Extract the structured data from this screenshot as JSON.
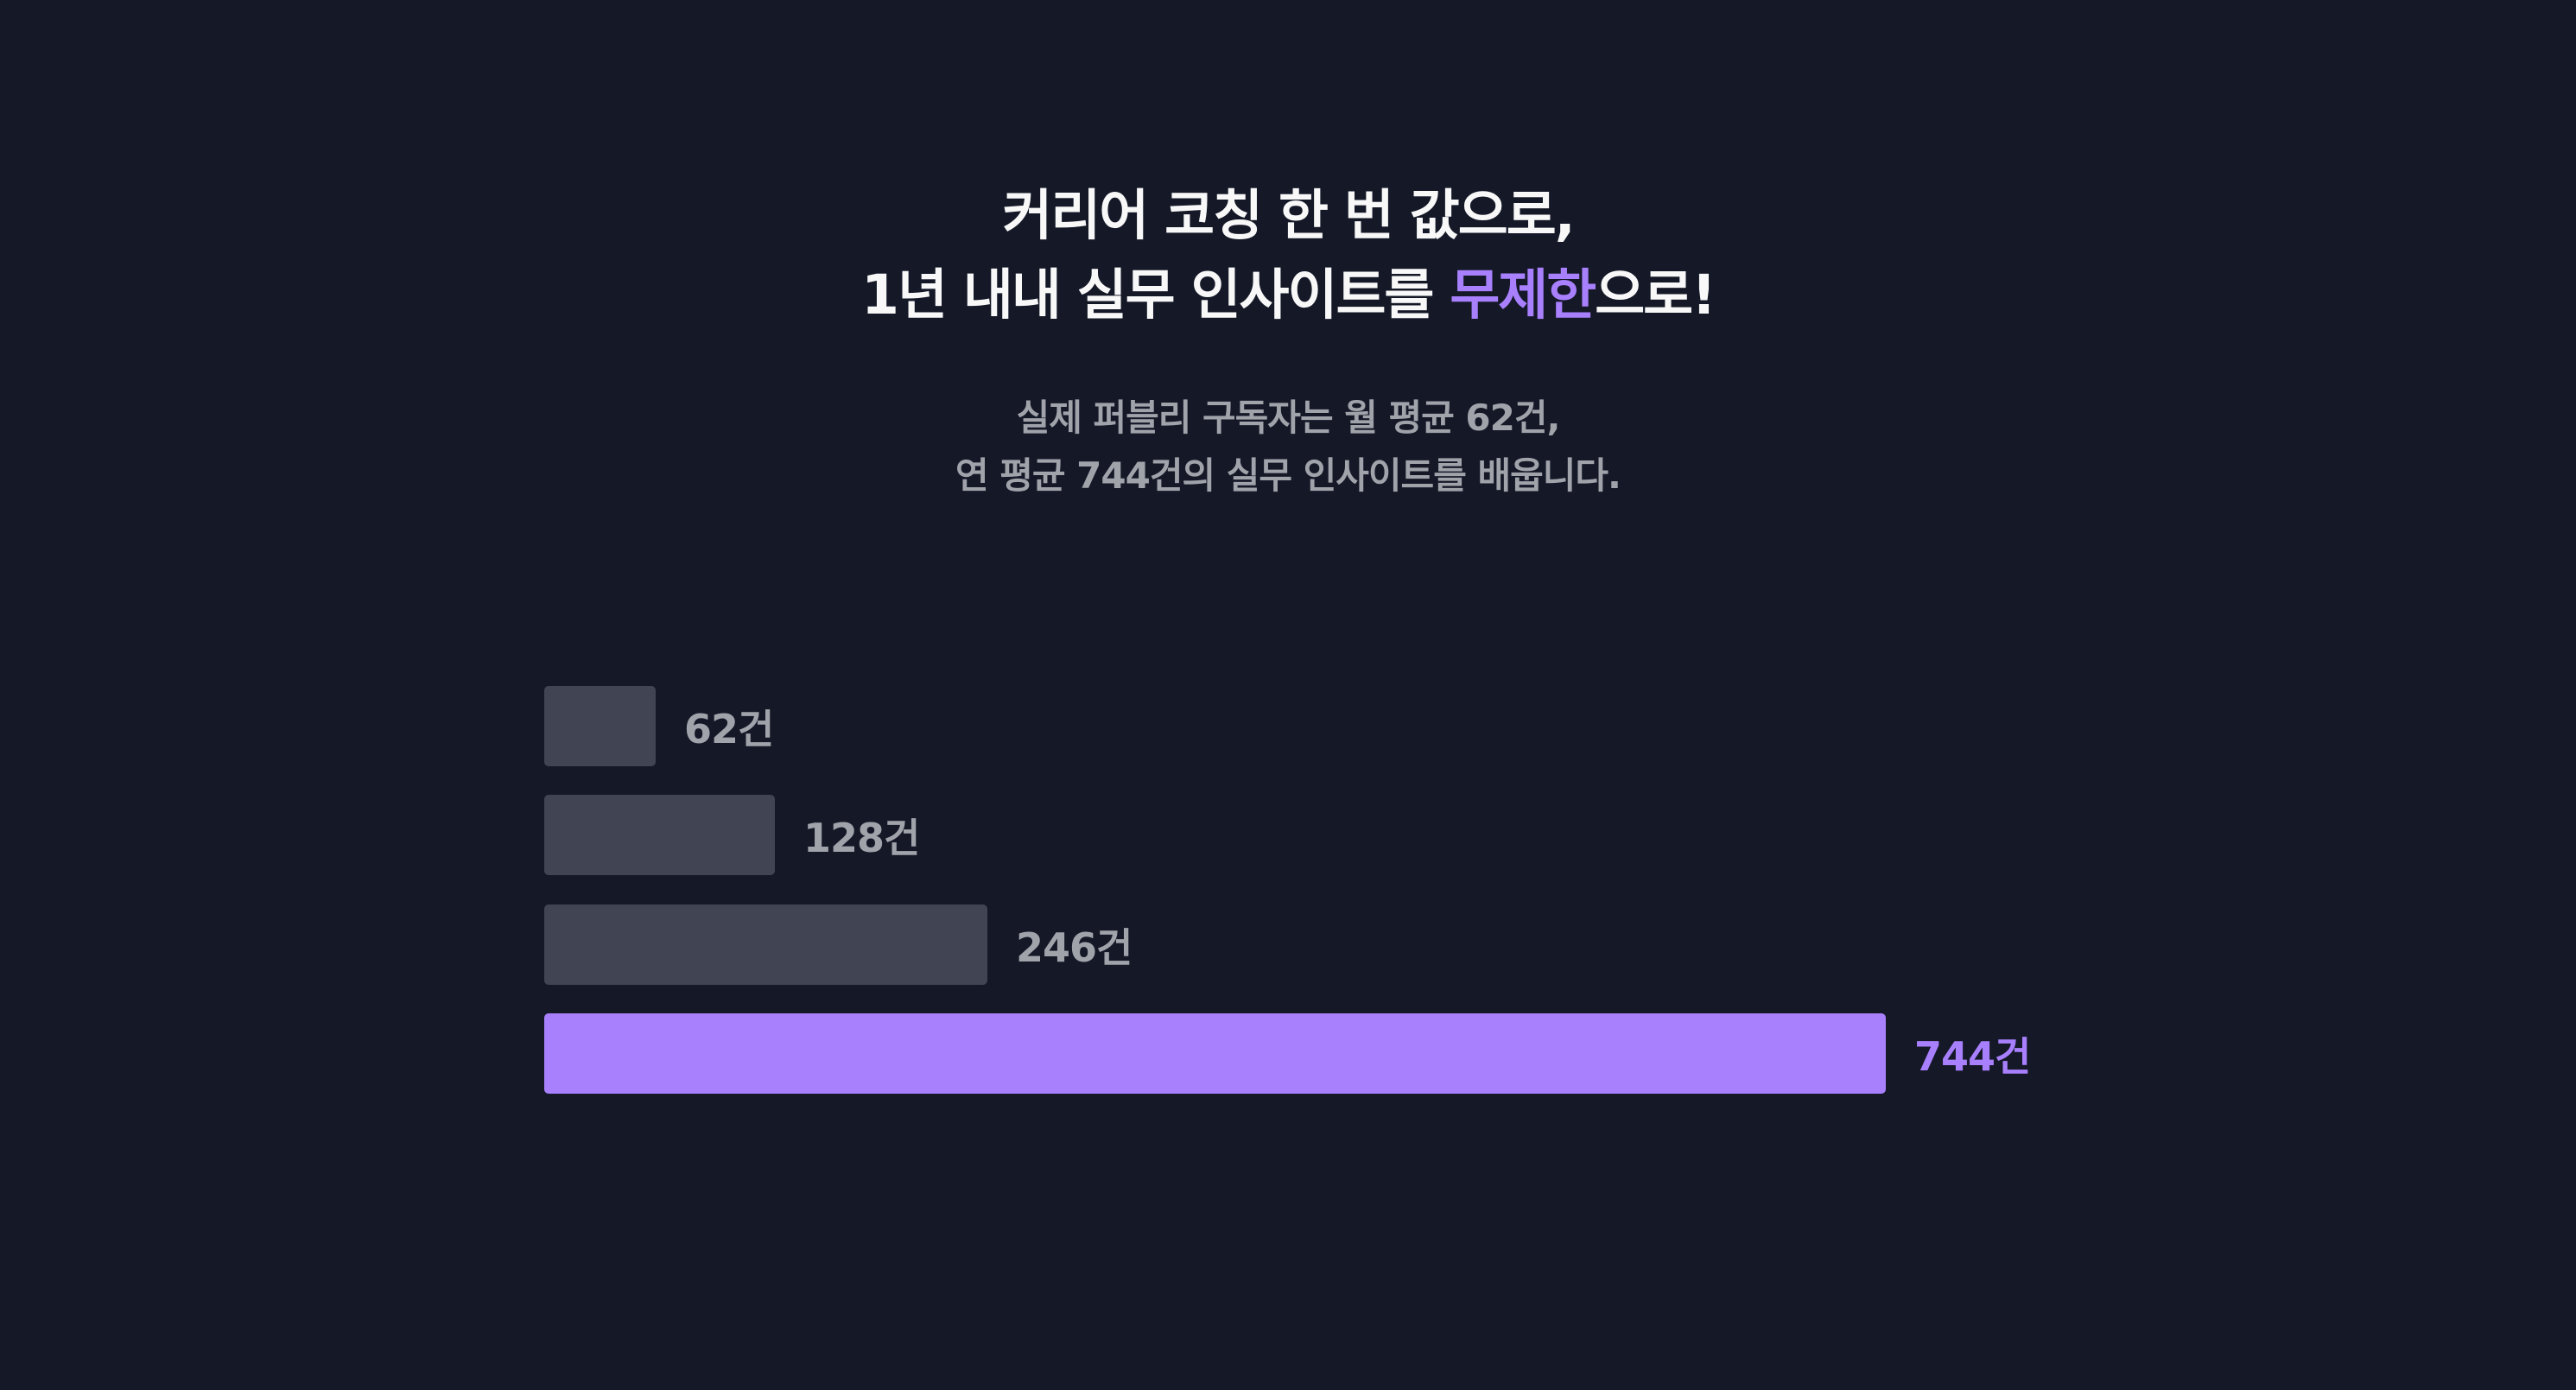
{
  "headline": {
    "line1": "커리어 코칭 한 번 값으로,",
    "line2_prefix": "1년 내내 실무 인사이트를 ",
    "line2_accent": "무제한",
    "line2_suffix": "으로!"
  },
  "subheadline": {
    "line1": "실제 퍼블리 구독자는 월 평균 62건,",
    "line2": "연 평균 744건의 실무 인사이트를 배웁니다."
  },
  "colors": {
    "background": "#141827",
    "text_primary": "#f8f8f8",
    "text_secondary": "#a0a3aa",
    "bar_default": "#414453",
    "accent": "#a880fd"
  },
  "chart_data": {
    "type": "bar",
    "orientation": "horizontal",
    "title": "",
    "xlabel": "",
    "ylabel": "",
    "grid": false,
    "legend": false,
    "categories": [
      "",
      "",
      "",
      ""
    ],
    "values": [
      62,
      128,
      246,
      744
    ],
    "value_labels": [
      "62건",
      "128건",
      "246건",
      "744건"
    ],
    "unit": "건",
    "highlight_index": 3,
    "xlim": [
      0,
      744
    ]
  }
}
